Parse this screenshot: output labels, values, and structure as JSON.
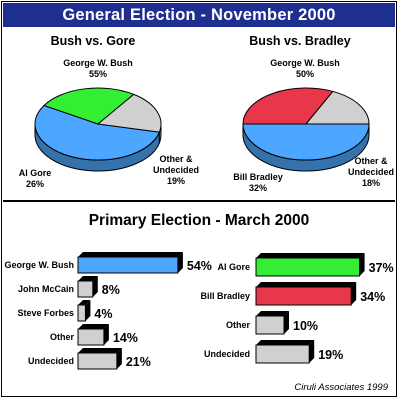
{
  "header": {
    "title": "General Election - November 2000"
  },
  "primary": {
    "title": "Primary Election - March 2000"
  },
  "credit": "Ciruli Associates 1999",
  "colors": {
    "header_bg": "#1f2f8f",
    "bush": "#4da6ff",
    "gore": "#33ee33",
    "bradley": "#e8364a",
    "other": "#d0d0d0"
  },
  "chart_data": [
    {
      "type": "pie",
      "title": "Bush vs. Gore",
      "slices": [
        {
          "label": "George W. Bush",
          "value": 55,
          "display": "55%"
        },
        {
          "label": "Al Gore",
          "value": 26,
          "display": "26%"
        },
        {
          "label": "Other & Undecided",
          "value": 19,
          "display": "19%"
        }
      ]
    },
    {
      "type": "pie",
      "title": "Bush vs. Bradley",
      "slices": [
        {
          "label": "George W. Bush",
          "value": 50,
          "display": "50%"
        },
        {
          "label": "Bill Bradley",
          "value": 32,
          "display": "32%"
        },
        {
          "label": "Other & Undecided",
          "value": 18,
          "display": "18%"
        }
      ]
    },
    {
      "type": "bar",
      "orientation": "horizontal",
      "categories": [
        "George W. Bush",
        "John McCain",
        "Steve Forbes",
        "Other",
        "Undecided"
      ],
      "values": [
        54,
        8,
        4,
        14,
        21
      ],
      "display": [
        "54%",
        "8%",
        "4%",
        "14%",
        "21%"
      ]
    },
    {
      "type": "bar",
      "orientation": "horizontal",
      "categories": [
        "Al Gore",
        "Bill Bradley",
        "Other",
        "Undecided"
      ],
      "values": [
        37,
        34,
        10,
        19
      ],
      "display": [
        "37%",
        "34%",
        "10%",
        "19%"
      ]
    }
  ]
}
